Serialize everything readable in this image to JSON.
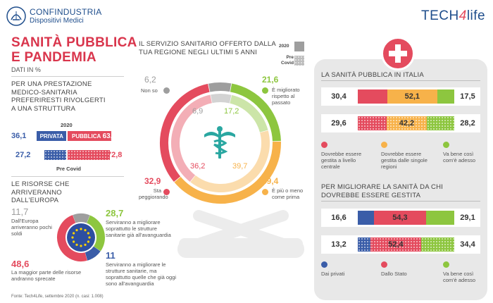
{
  "brand": {
    "org": "CONFINDUSTRIA",
    "org_sub": "Dispositivi Medici",
    "partner_a": "TECH",
    "partner_b": "4",
    "partner_c": "life"
  },
  "title": {
    "line1": "SANITÀ PUBBLICA",
    "line2": "E PANDEMIA",
    "sub": "DATI IN %"
  },
  "colors": {
    "red": "#e44b5e",
    "green": "#8dc63f",
    "orange": "#f7b24a",
    "grey": "#9e9e9e",
    "blue": "#3a5da8",
    "darkred": "#c8323f"
  },
  "pref": {
    "heading": "PER UNA PRESTAZIONE MEDICO-SANITARIA PREFERIRESTI RIVOLGERTI A UNA STRUTTURA",
    "year_label": "2020",
    "private_label": "PRIVATA",
    "public_label": "PUBBLICA",
    "private_2020": "36,1",
    "public_2020": "63,9",
    "private_pre": "27,2",
    "public_pre": "72,8",
    "pre_label": "Pre Covid"
  },
  "eu": {
    "heading": "LE RISORSE CHE ARRIVERANNO DALL'EUROPA",
    "a_value": "11,7",
    "a_text": "Dall'Europa arriveranno pochi soldi",
    "b_value": "28,7",
    "b_text": "Serviranno a migliorare soprattutto le strutture sanitarie già all'avanguardia",
    "c_value": "11",
    "c_text": "Serviranno a migliorare le strutture sanitarie, ma soprattutto quelle che già oggi sono all'avanguardia",
    "d_value": "48,6",
    "d_text": "La maggior parte delle risorse andranno sprecate"
  },
  "service": {
    "heading": "IL SERVIZIO SANITARIO OFFERTO DALLA TUA REGIONE NEGLI ULTIMI 5 ANNI",
    "legend_2020": "2020",
    "legend_pre": "Pre Covid",
    "nonso_label": "Non so",
    "nonso_2020": "6,2",
    "nonso_pre": "6,9",
    "better_label": "È migliorato rispetto al passato",
    "better_2020": "21,6",
    "better_pre": "17,2",
    "same_label": "È più o meno come prima",
    "same_2020": "39,4",
    "same_pre": "39,7",
    "worse_label": "Sta peggiorando",
    "worse_2020": "32,9",
    "worse_pre": "36,2"
  },
  "italy": {
    "heading": "LA SANITÀ PUBBLICA IN ITALIA",
    "row1": [
      "30,4",
      "52,1",
      "17,5"
    ],
    "row2": [
      "29,6",
      "42,2",
      "28,2"
    ],
    "leg1": "Dovrebbe essere gestita a livello centrale",
    "leg2": "Dovrebbe essere gestita dalle singole regioni",
    "leg3": "Va bene così com'è adesso"
  },
  "who": {
    "heading": "PER MIGLIORARE LA SANITÀ DA CHI DOVREBBE ESSERE GESTITA",
    "row1": [
      "16,6",
      "54,3",
      "29,1"
    ],
    "row2": [
      "13,2",
      "52,4",
      "34,4"
    ],
    "leg1": "Dai privati",
    "leg2": "Dallo Stato",
    "leg3": "Va bene così com'è adesso"
  },
  "source": "Fonte: Tech4Life, settembre 2020 (n. casi: 1.008)",
  "chart_data": [
    {
      "type": "bar",
      "title": "PER UNA PRESTAZIONE MEDICO-SANITARIA PREFERIRESTI RIVOLGERTI A UNA STRUTTURA",
      "categories": [
        "2020",
        "Pre Covid"
      ],
      "series": [
        {
          "name": "PRIVATA",
          "values": [
            36.1,
            27.2
          ]
        },
        {
          "name": "PUBBLICA",
          "values": [
            63.9,
            72.8
          ]
        }
      ]
    },
    {
      "type": "pie",
      "title": "LE RISORSE CHE ARRIVERANNO DALL'EUROPA",
      "categories": [
        "Dall'Europa arriveranno pochi soldi",
        "Serviranno a migliorare soprattutto le strutture sanitarie già all'avanguardia",
        "Serviranno a migliorare le strutture sanitarie, ma soprattutto quelle che già oggi sono all'avanguardia",
        "La maggior parte delle risorse andranno sprecate"
      ],
      "values": [
        11.7,
        28.7,
        11,
        48.6
      ]
    },
    {
      "type": "pie",
      "title": "IL SERVIZIO SANITARIO OFFERTO DALLA TUA REGIONE NEGLI ULTIMI 5 ANNI",
      "categories": [
        "Non so",
        "È migliorato rispetto al passato",
        "È più o meno come prima",
        "Sta peggiorando"
      ],
      "series": [
        {
          "name": "2020",
          "values": [
            6.2,
            21.6,
            39.4,
            32.9
          ]
        },
        {
          "name": "Pre Covid",
          "values": [
            6.9,
            17.2,
            39.7,
            36.2
          ]
        }
      ]
    },
    {
      "type": "bar",
      "title": "LA SANITÀ PUBBLICA IN ITALIA",
      "categories": [
        "Dovrebbe essere gestita a livello centrale",
        "Dovrebbe essere gestita dalle singole regioni",
        "Va bene così com'è adesso"
      ],
      "series": [
        {
          "name": "2020",
          "values": [
            30.4,
            52.1,
            17.5
          ]
        },
        {
          "name": "Pre Covid",
          "values": [
            29.6,
            42.2,
            28.2
          ]
        }
      ]
    },
    {
      "type": "bar",
      "title": "PER MIGLIORARE LA SANITÀ DA CHI DOVREBBE ESSERE GESTITA",
      "categories": [
        "Dai privati",
        "Dallo Stato",
        "Va bene così com'è adesso"
      ],
      "series": [
        {
          "name": "2020",
          "values": [
            16.6,
            54.3,
            29.1
          ]
        },
        {
          "name": "Pre Covid",
          "values": [
            13.2,
            52.4,
            34.4
          ]
        }
      ]
    }
  ]
}
